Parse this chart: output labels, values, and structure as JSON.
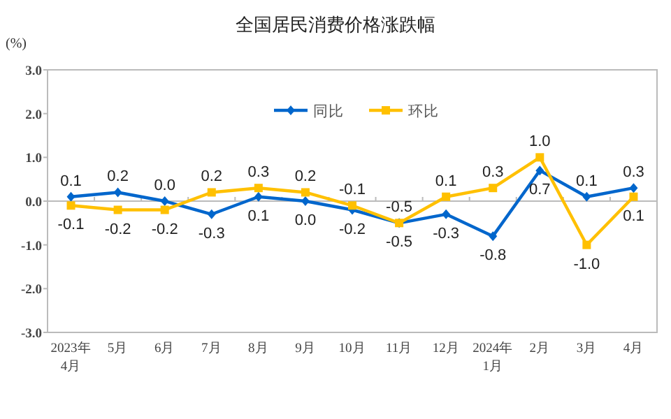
{
  "chart_data": {
    "type": "line",
    "title": "全国居民消费价格涨跌幅",
    "ylabel": "(%)",
    "categories": [
      "2023年\n4月",
      "5月",
      "6月",
      "7月",
      "8月",
      "9月",
      "10月",
      "11月",
      "12月",
      "2024年\n1月",
      "2月",
      "3月",
      "4月"
    ],
    "series": [
      {
        "name": "同比",
        "color": "#0066cc",
        "marker": "diamond",
        "values": [
          0.1,
          0.2,
          0.0,
          -0.3,
          0.1,
          0.0,
          -0.2,
          -0.5,
          -0.3,
          -0.8,
          0.7,
          0.1,
          0.3
        ],
        "value_labels": [
          "0.1",
          "0.2",
          "0.0",
          "-0.3",
          "0.1",
          "0.0",
          "-0.2",
          "-0.5",
          "-0.3",
          "-0.8",
          "0.7",
          "0.1",
          "0.3"
        ]
      },
      {
        "name": "环比",
        "color": "#ffc000",
        "marker": "square",
        "values": [
          -0.1,
          -0.2,
          -0.2,
          0.2,
          0.3,
          0.2,
          -0.1,
          -0.5,
          0.1,
          0.3,
          1.0,
          -1.0,
          0.1
        ],
        "value_labels": [
          "-0.1",
          "-0.2",
          "-0.2",
          "0.2",
          "0.3",
          "0.2",
          "-0.1",
          "-0.5",
          "0.1",
          "0.3",
          "1.0",
          "-1.0",
          "0.1"
        ]
      }
    ],
    "ylim": [
      -3.0,
      3.0
    ],
    "yticks": [
      {
        "value": 3.0,
        "label": "3.0"
      },
      {
        "value": 2.0,
        "label": "2.0"
      },
      {
        "value": 1.0,
        "label": "1.0"
      },
      {
        "value": 0,
        "label": "0.0"
      },
      {
        "value": -1.0,
        "label": "-1.0"
      },
      {
        "value": -2.0,
        "label": "-2.0"
      },
      {
        "value": -3.0,
        "label": "-3.0"
      }
    ],
    "legend": "top"
  }
}
